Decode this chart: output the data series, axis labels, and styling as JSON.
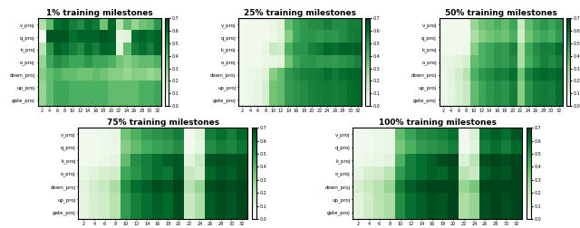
{
  "titles": [
    "1% training milestones",
    "25% training milestones",
    "50% training milestones",
    "75% training milestones",
    "100% training milestones"
  ],
  "ylabels": [
    "v_proj",
    "q_proj",
    "k_proj",
    "o_proj",
    "down_proj",
    "up_proj",
    "gate_proj"
  ],
  "xticks": [
    2,
    4,
    6,
    8,
    10,
    12,
    14,
    16,
    18,
    20,
    22,
    24,
    26,
    28,
    30,
    32
  ],
  "colormap": "Greens",
  "vmin": 0.0,
  "vmax": 0.7,
  "heatmaps": {
    "1%": [
      [
        0.22,
        0.38,
        0.6,
        0.63,
        0.56,
        0.52,
        0.6,
        0.57,
        0.35,
        0.62,
        0.21,
        0.38,
        0.28,
        0.35,
        0.38,
        0.49
      ],
      [
        0.03,
        0.66,
        0.66,
        0.66,
        0.6,
        0.63,
        0.63,
        0.63,
        0.66,
        0.64,
        0.07,
        0.1,
        0.6,
        0.63,
        0.6,
        0.63
      ],
      [
        0.21,
        0.49,
        0.63,
        0.6,
        0.56,
        0.52,
        0.6,
        0.56,
        0.63,
        0.62,
        0.1,
        0.38,
        0.56,
        0.6,
        0.56,
        0.63
      ],
      [
        0.28,
        0.45,
        0.52,
        0.49,
        0.45,
        0.45,
        0.49,
        0.45,
        0.45,
        0.42,
        0.35,
        0.31,
        0.35,
        0.38,
        0.38,
        0.42
      ],
      [
        0.31,
        0.38,
        0.42,
        0.38,
        0.38,
        0.35,
        0.35,
        0.38,
        0.35,
        0.31,
        0.31,
        0.28,
        0.31,
        0.31,
        0.28,
        0.31
      ],
      [
        0.28,
        0.38,
        0.45,
        0.45,
        0.42,
        0.42,
        0.42,
        0.42,
        0.42,
        0.38,
        0.38,
        0.38,
        0.38,
        0.42,
        0.42,
        0.45
      ],
      [
        0.28,
        0.38,
        0.45,
        0.45,
        0.42,
        0.42,
        0.42,
        0.42,
        0.42,
        0.38,
        0.38,
        0.38,
        0.38,
        0.42,
        0.42,
        0.45
      ]
    ],
    "25%": [
      [
        0.03,
        0.03,
        0.03,
        0.03,
        0.07,
        0.1,
        0.38,
        0.45,
        0.49,
        0.52,
        0.52,
        0.56,
        0.52,
        0.52,
        0.56,
        0.56
      ],
      [
        0.03,
        0.03,
        0.03,
        0.03,
        0.06,
        0.1,
        0.31,
        0.45,
        0.49,
        0.5,
        0.48,
        0.5,
        0.49,
        0.52,
        0.56,
        0.57
      ],
      [
        0.03,
        0.03,
        0.03,
        0.07,
        0.17,
        0.14,
        0.42,
        0.49,
        0.5,
        0.55,
        0.57,
        0.62,
        0.6,
        0.63,
        0.63,
        0.64
      ],
      [
        0.03,
        0.03,
        0.03,
        0.06,
        0.07,
        0.1,
        0.35,
        0.45,
        0.49,
        0.5,
        0.48,
        0.49,
        0.48,
        0.5,
        0.52,
        0.55
      ],
      [
        0.03,
        0.06,
        0.07,
        0.1,
        0.31,
        0.38,
        0.49,
        0.52,
        0.55,
        0.56,
        0.57,
        0.6,
        0.57,
        0.6,
        0.62,
        0.63
      ],
      [
        0.03,
        0.06,
        0.08,
        0.13,
        0.35,
        0.38,
        0.48,
        0.5,
        0.52,
        0.55,
        0.56,
        0.57,
        0.56,
        0.57,
        0.6,
        0.62
      ],
      [
        0.03,
        0.06,
        0.08,
        0.13,
        0.35,
        0.38,
        0.48,
        0.5,
        0.52,
        0.55,
        0.56,
        0.57,
        0.56,
        0.57,
        0.6,
        0.62
      ]
    ],
    "50%": [
      [
        0.03,
        0.03,
        0.03,
        0.03,
        0.28,
        0.35,
        0.38,
        0.42,
        0.38,
        0.45,
        0.17,
        0.38,
        0.45,
        0.49,
        0.45,
        0.5
      ],
      [
        0.03,
        0.03,
        0.03,
        0.03,
        0.24,
        0.31,
        0.35,
        0.38,
        0.36,
        0.42,
        0.15,
        0.35,
        0.42,
        0.45,
        0.42,
        0.48
      ],
      [
        0.03,
        0.03,
        0.03,
        0.06,
        0.31,
        0.42,
        0.45,
        0.49,
        0.48,
        0.55,
        0.24,
        0.45,
        0.52,
        0.56,
        0.55,
        0.6
      ],
      [
        0.07,
        0.08,
        0.1,
        0.13,
        0.38,
        0.42,
        0.45,
        0.49,
        0.48,
        0.52,
        0.24,
        0.43,
        0.5,
        0.55,
        0.52,
        0.56
      ],
      [
        0.07,
        0.1,
        0.14,
        0.21,
        0.42,
        0.49,
        0.52,
        0.56,
        0.55,
        0.6,
        0.35,
        0.55,
        0.6,
        0.62,
        0.6,
        0.63
      ],
      [
        0.06,
        0.08,
        0.13,
        0.17,
        0.38,
        0.45,
        0.49,
        0.52,
        0.5,
        0.56,
        0.31,
        0.5,
        0.56,
        0.57,
        0.56,
        0.6
      ],
      [
        0.06,
        0.08,
        0.13,
        0.17,
        0.38,
        0.45,
        0.49,
        0.52,
        0.5,
        0.56,
        0.31,
        0.5,
        0.56,
        0.57,
        0.56,
        0.6
      ]
    ],
    "75%": [
      [
        0.03,
        0.03,
        0.05,
        0.07,
        0.35,
        0.42,
        0.48,
        0.5,
        0.52,
        0.56,
        0.03,
        0.1,
        0.56,
        0.6,
        0.56,
        0.62
      ],
      [
        0.03,
        0.03,
        0.05,
        0.06,
        0.31,
        0.38,
        0.43,
        0.46,
        0.48,
        0.52,
        0.03,
        0.08,
        0.52,
        0.56,
        0.54,
        0.58
      ],
      [
        0.03,
        0.03,
        0.06,
        0.08,
        0.38,
        0.52,
        0.56,
        0.6,
        0.64,
        0.66,
        0.1,
        0.17,
        0.66,
        0.68,
        0.66,
        0.68
      ],
      [
        0.07,
        0.1,
        0.13,
        0.15,
        0.45,
        0.5,
        0.56,
        0.6,
        0.58,
        0.66,
        0.17,
        0.14,
        0.62,
        0.66,
        0.64,
        0.68
      ],
      [
        0.1,
        0.14,
        0.17,
        0.24,
        0.52,
        0.6,
        0.64,
        0.68,
        0.66,
        0.7,
        0.21,
        0.28,
        0.68,
        0.7,
        0.68,
        0.7
      ],
      [
        0.08,
        0.13,
        0.15,
        0.21,
        0.48,
        0.56,
        0.6,
        0.64,
        0.62,
        0.68,
        0.17,
        0.24,
        0.65,
        0.68,
        0.66,
        0.69
      ],
      [
        0.08,
        0.13,
        0.15,
        0.21,
        0.48,
        0.56,
        0.6,
        0.64,
        0.62,
        0.68,
        0.17,
        0.24,
        0.65,
        0.68,
        0.66,
        0.69
      ]
    ],
    "100%": [
      [
        0.03,
        0.03,
        0.06,
        0.07,
        0.38,
        0.46,
        0.52,
        0.54,
        0.56,
        0.6,
        0.03,
        0.12,
        0.6,
        0.64,
        0.6,
        0.66
      ],
      [
        0.03,
        0.03,
        0.06,
        0.07,
        0.34,
        0.42,
        0.48,
        0.5,
        0.52,
        0.56,
        0.03,
        0.1,
        0.56,
        0.6,
        0.56,
        0.62
      ],
      [
        0.03,
        0.06,
        0.07,
        0.1,
        0.42,
        0.56,
        0.6,
        0.64,
        0.68,
        0.7,
        0.12,
        0.2,
        0.68,
        0.7,
        0.68,
        0.7
      ],
      [
        0.08,
        0.13,
        0.15,
        0.2,
        0.48,
        0.56,
        0.6,
        0.64,
        0.62,
        0.68,
        0.2,
        0.17,
        0.64,
        0.68,
        0.66,
        0.7
      ],
      [
        0.13,
        0.17,
        0.21,
        0.28,
        0.56,
        0.64,
        0.68,
        0.7,
        0.7,
        0.72,
        0.28,
        0.34,
        0.7,
        0.72,
        0.7,
        0.72
      ],
      [
        0.1,
        0.15,
        0.2,
        0.24,
        0.52,
        0.6,
        0.64,
        0.68,
        0.66,
        0.7,
        0.24,
        0.28,
        0.67,
        0.7,
        0.68,
        0.7
      ],
      [
        0.1,
        0.15,
        0.2,
        0.24,
        0.52,
        0.6,
        0.64,
        0.68,
        0.66,
        0.7,
        0.24,
        0.28,
        0.67,
        0.7,
        0.68,
        0.7
      ]
    ]
  }
}
